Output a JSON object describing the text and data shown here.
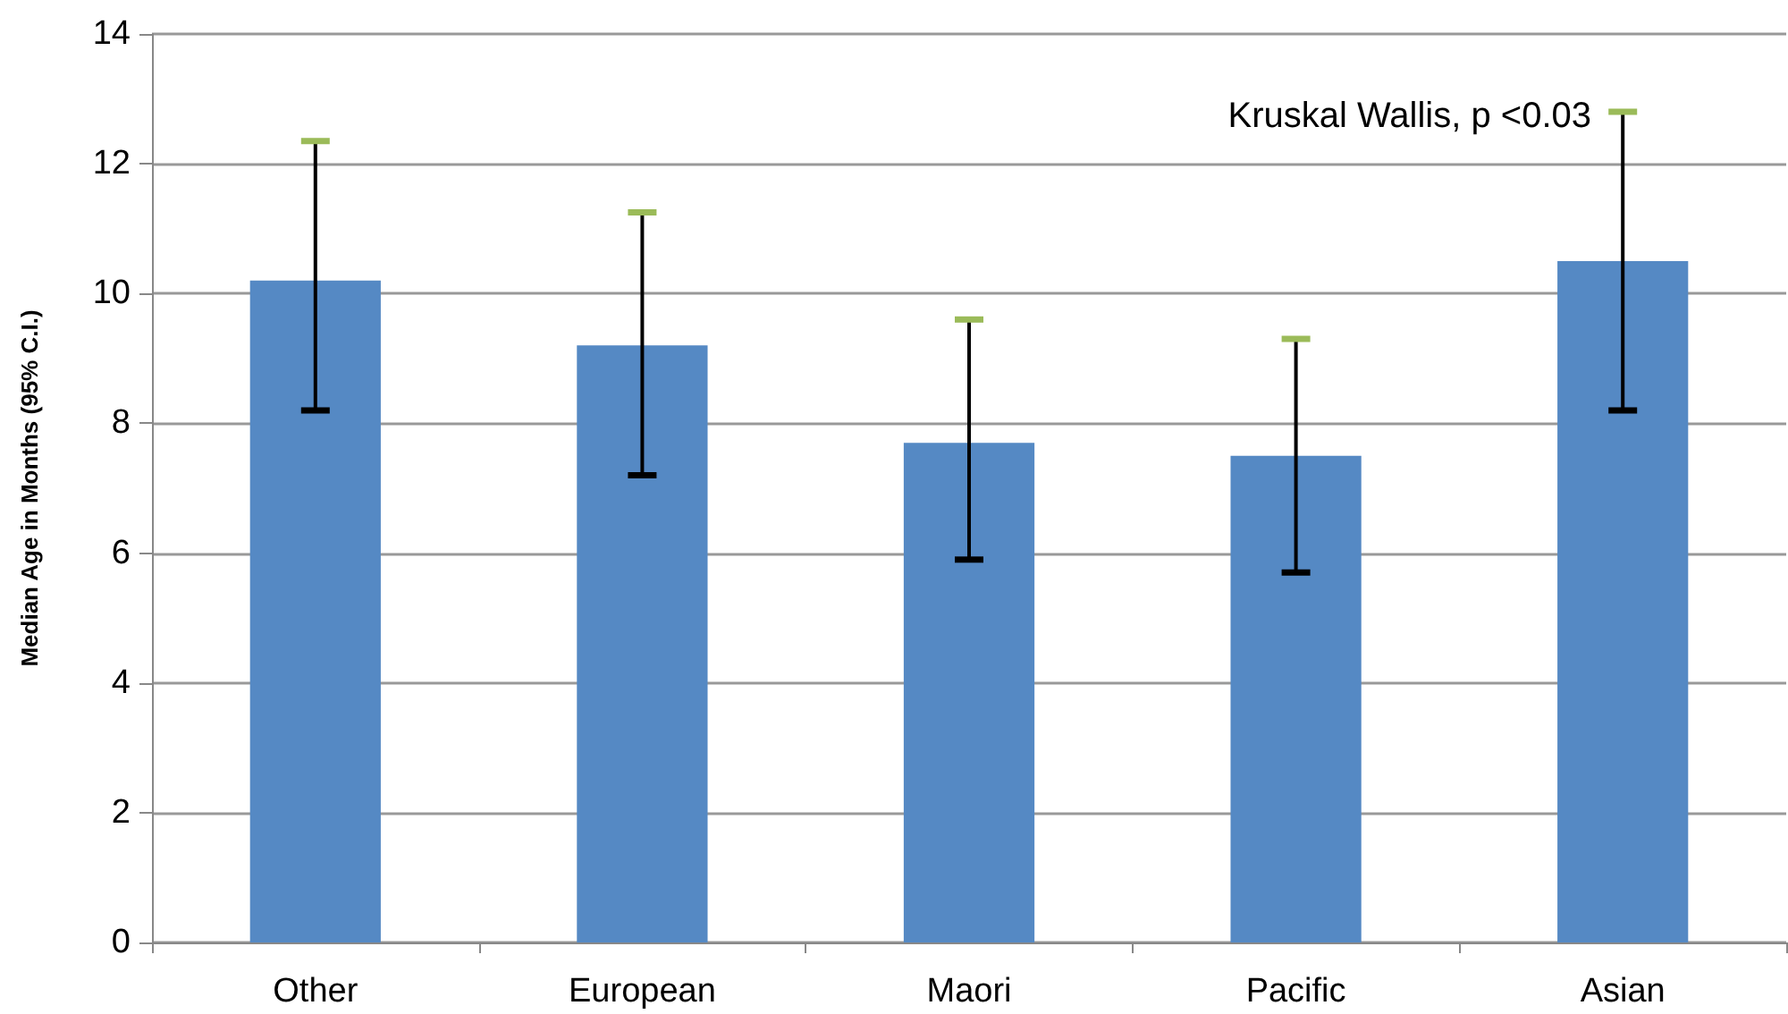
{
  "chart_data": {
    "type": "bar",
    "ylabel": "Median Age in Months (95% C.I.)",
    "categories": [
      "Other",
      "European",
      "Maori",
      "Pacific",
      "Asian"
    ],
    "values": [
      10.2,
      9.2,
      7.7,
      7.5,
      10.5
    ],
    "errors": [
      [
        8.2,
        12.35
      ],
      [
        7.2,
        11.25
      ],
      [
        5.9,
        9.6
      ],
      [
        5.7,
        9.3
      ],
      [
        8.2,
        12.8
      ]
    ],
    "color": "#5589c4",
    "ylim": [
      0,
      14
    ],
    "yticks": [
      0,
      2,
      4,
      6,
      8,
      10,
      12,
      14
    ],
    "grid": "y",
    "annotations": [
      "Kruskal Wallis, p <0.03"
    ]
  }
}
